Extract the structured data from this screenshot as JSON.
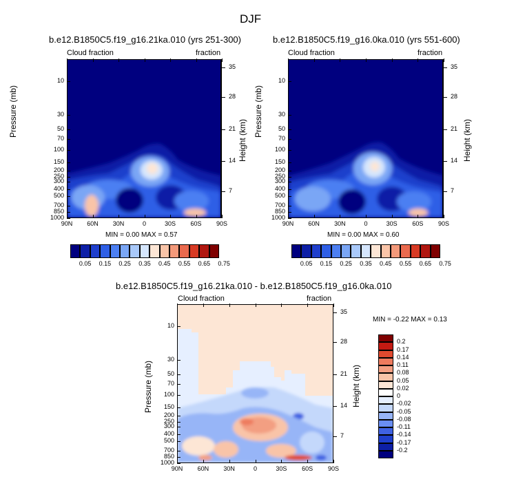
{
  "figure": {
    "title": "DJF"
  },
  "palette": {
    "cb1": [
      "#00007f",
      "#0d1fa6",
      "#1f3fcc",
      "#2f5fe6",
      "#4c7ff2",
      "#7aa6f5",
      "#a9c9fa",
      "#d5e6fd",
      "#fde6d5",
      "#f9c4a8",
      "#f3997a",
      "#ea6a4e",
      "#d73a24",
      "#b01710",
      "#7f0000"
    ],
    "cb_diff": [
      "#00007f",
      "#0d1fa6",
      "#1f3fcc",
      "#3f62e2",
      "#6a8ef2",
      "#97b5f7",
      "#c4d8fb",
      "#e6efff",
      "#fde6d5",
      "#f9c4a8",
      "#f39f82",
      "#ee7b5e",
      "#e04a2f",
      "#c21a12",
      "#7f0000"
    ]
  },
  "chart_data": [
    {
      "type": "heatmap",
      "name": "panel-a",
      "title": "b.e12.B1850C5.f19_g16.21ka.010 (yrs 251-300)",
      "left_label": "Cloud fraction",
      "right_label": "fraction",
      "ylabel": "Pressure (mb)",
      "ylabel2": "Height (km)",
      "xticks": [
        "90N",
        "60N",
        "30N",
        "0",
        "30S",
        "60S",
        "90S"
      ],
      "yticks": [
        "10",
        "30",
        "50",
        "70",
        "100",
        "150",
        "200",
        "250",
        "300",
        "400",
        "500",
        "700",
        "850",
        "1000"
      ],
      "y2ticks": [
        "35",
        "28",
        "21",
        "14",
        "7"
      ],
      "min_label": "MIN =   0.00   MAX =   0.57",
      "colorbar": {
        "levels": [
          "0.05",
          "0.15",
          "0.25",
          "0.35",
          "0.45",
          "0.55",
          "0.65",
          "0.75"
        ]
      },
      "field": "Cloud fraction, zonal mean",
      "max": 0.57,
      "min": 0.0
    },
    {
      "type": "heatmap",
      "name": "panel-b",
      "title": "b.e12.B1850C5.f19_g16.0ka.010 (yrs 551-600)",
      "left_label": "Cloud fraction",
      "right_label": "fraction",
      "ylabel": "Pressure (mb)",
      "ylabel2": "Height (km)",
      "xticks": [
        "90N",
        "60N",
        "30N",
        "0",
        "30S",
        "60S",
        "90S"
      ],
      "yticks": [
        "10",
        "30",
        "50",
        "70",
        "100",
        "150",
        "200",
        "250",
        "300",
        "400",
        "500",
        "700",
        "850",
        "1000"
      ],
      "y2ticks": [
        "35",
        "28",
        "21",
        "14",
        "7"
      ],
      "min_label": "MIN =   0.00   MAX =   0.60",
      "colorbar": {
        "levels": [
          "0.05",
          "0.15",
          "0.25",
          "0.35",
          "0.45",
          "0.55",
          "0.65",
          "0.75"
        ]
      },
      "field": "Cloud fraction, zonal mean",
      "max": 0.6,
      "min": 0.0
    },
    {
      "type": "heatmap",
      "name": "panel-diff",
      "title": "b.e12.B1850C5.f19_g16.21ka.010 - b.e12.B1850C5.f19_g16.0ka.010",
      "left_label": "Cloud fraction",
      "right_label": "fraction",
      "ylabel": "Pressure (mb)",
      "ylabel2": "Height (km)",
      "xticks": [
        "90N",
        "60N",
        "30N",
        "0",
        "30S",
        "60S",
        "90S"
      ],
      "yticks": [
        "10",
        "30",
        "50",
        "70",
        "100",
        "150",
        "200",
        "250",
        "300",
        "400",
        "500",
        "700",
        "850",
        "1000"
      ],
      "y2ticks": [
        "35",
        "28",
        "21",
        "14",
        "7"
      ],
      "min_label": "MIN =  -0.22   MAX =   0.13",
      "colorbar": {
        "levels": [
          "0.2",
          "0.17",
          "0.14",
          "0.11",
          "0.08",
          "0.05",
          "0.02",
          "0",
          "-0.02",
          "-0.05",
          "-0.08",
          "-0.11",
          "-0.14",
          "-0.17",
          "-0.2"
        ]
      },
      "field": "Cloud fraction difference",
      "max": 0.13,
      "min": -0.22
    }
  ]
}
